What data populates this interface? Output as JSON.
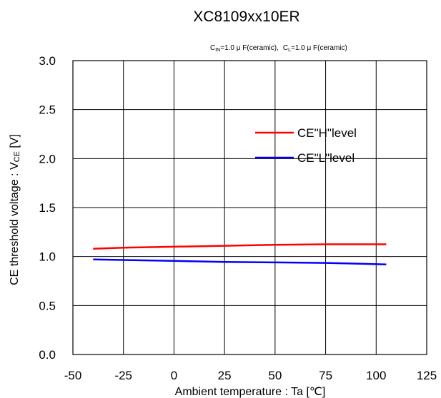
{
  "chart_data": {
    "type": "line",
    "title": "XC8109xx10ER",
    "conditions": {
      "cin_sym": "C",
      "cin_sub": "IN",
      "cin_val": "=1.0 μ F(ceramic),",
      "cl_sym": "C",
      "cl_sub": "L",
      "cl_val": "=1.0 μ F(ceramic)"
    },
    "xlabel": "Ambient temperature : Ta [",
    "xlabel_unit": "℃",
    "xlabel_close": "]",
    "ylabel": "CE threshold voltage : V",
    "ylabel_sub": "CE",
    "ylabel_unit": " [V]",
    "xlim": [
      -50,
      125
    ],
    "ylim": [
      0,
      3.0
    ],
    "x_ticks": [
      -50,
      -25,
      0,
      25,
      50,
      75,
      100,
      125
    ],
    "y_ticks": [
      0.0,
      0.5,
      1.0,
      1.5,
      2.0,
      2.5,
      3.0
    ],
    "grid": true,
    "legend_position": "top-right",
    "series": [
      {
        "name": "CE\"H\"level",
        "color": "#ff0000",
        "x": [
          -40,
          -25,
          0,
          25,
          50,
          75,
          105
        ],
        "y": [
          1.08,
          1.09,
          1.1,
          1.11,
          1.12,
          1.125,
          1.125
        ]
      },
      {
        "name": "CE\"L\"level",
        "color": "#0000ff",
        "x": [
          -40,
          -25,
          0,
          25,
          50,
          75,
          105
        ],
        "y": [
          0.97,
          0.965,
          0.955,
          0.945,
          0.94,
          0.935,
          0.92
        ]
      }
    ]
  }
}
